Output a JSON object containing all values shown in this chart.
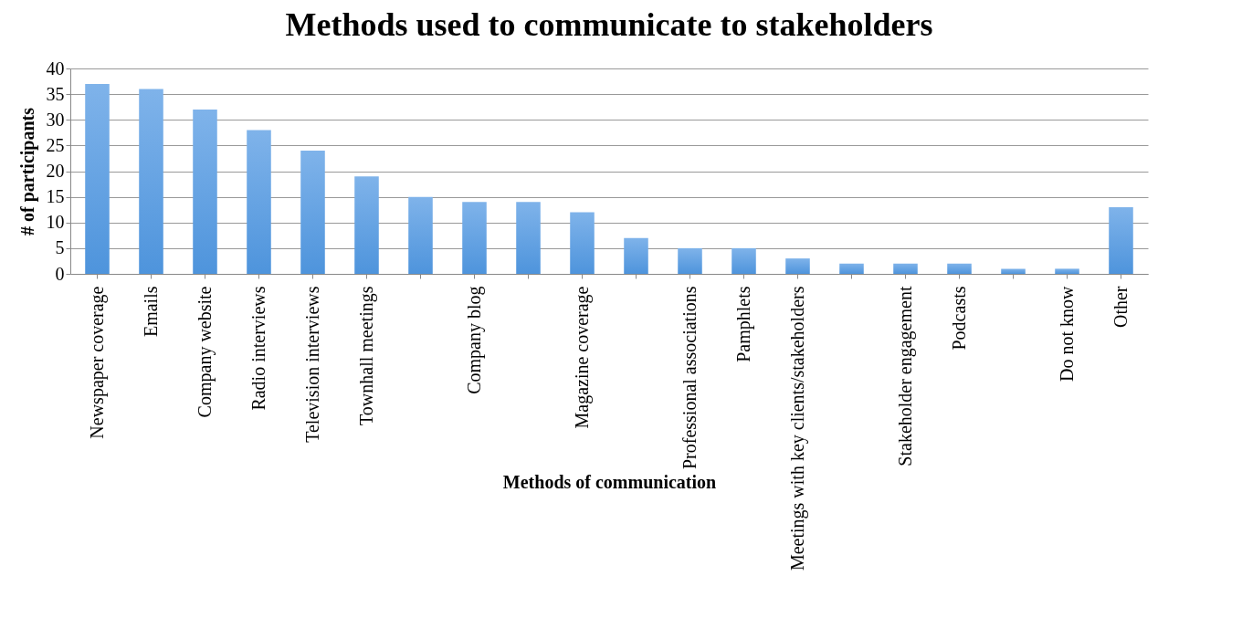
{
  "chart_data": {
    "type": "bar",
    "title": "Methods used to communicate to stakeholders",
    "xlabel": "Methods of communication",
    "ylabel": "# of participants",
    "categories": [
      "Newspaper coverage",
      "Emails",
      "Company website",
      "Radio interviews",
      "Television interviews",
      "Townhall meetings",
      null,
      "Company blog",
      null,
      "Magazine coverage",
      null,
      "Professional\nassociations",
      "Pamphlets",
      "Meetings with key\nclients/stakeholders",
      null,
      "Stakeholder\nengagement",
      "Podcasts",
      null,
      "Do not know",
      "Other"
    ],
    "values": [
      37,
      36,
      32,
      28,
      24,
      19,
      15,
      14,
      14,
      12,
      7,
      5,
      5,
      3,
      2,
      2,
      2,
      1,
      1,
      13
    ],
    "color": "#7fb3ea",
    "ylim": [
      0,
      40
    ],
    "yticks": [
      0,
      5,
      10,
      15,
      20,
      25,
      30,
      35,
      40
    ],
    "grid": "y"
  }
}
